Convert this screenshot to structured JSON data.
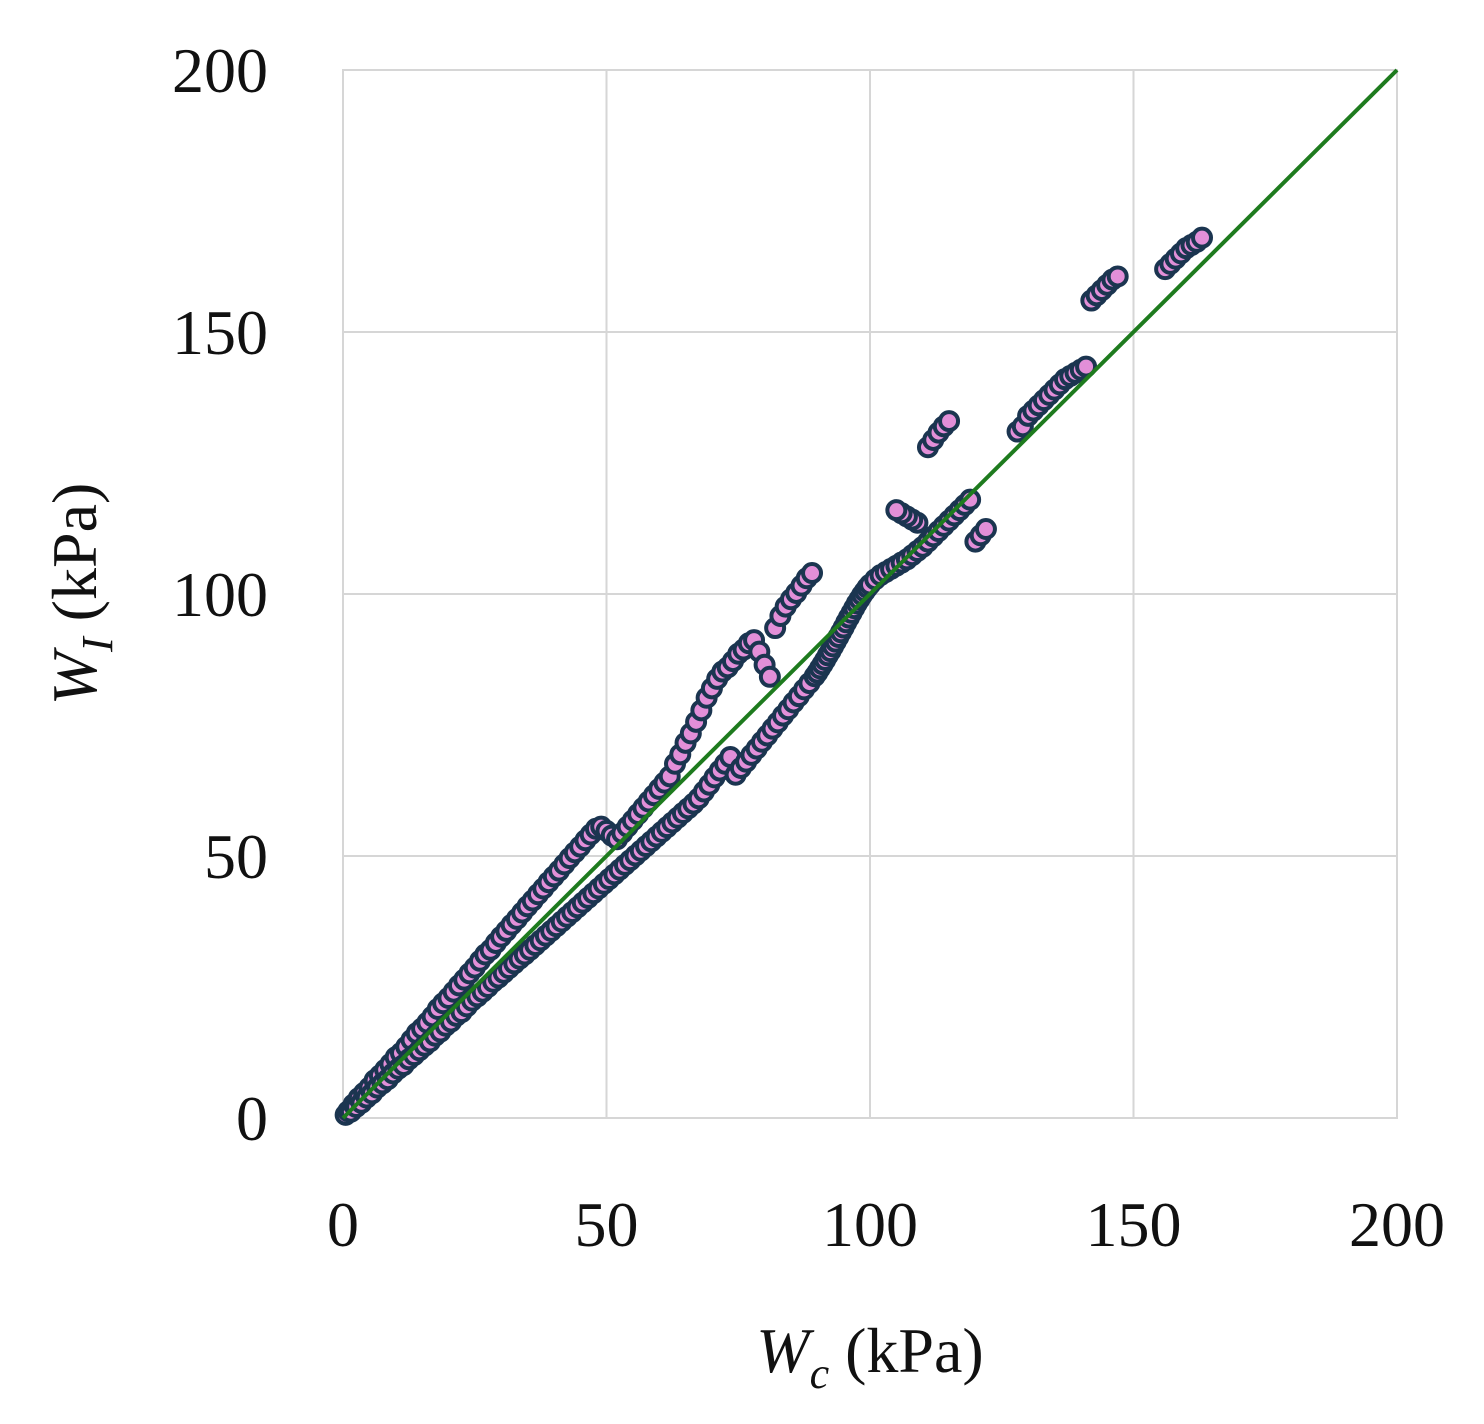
{
  "chart_data": {
    "type": "scatter",
    "title": "",
    "xlabel": {
      "var": "W",
      "sub": "c",
      "unit": " (kPa)"
    },
    "ylabel": {
      "var": "W",
      "sub": "I",
      "unit": " (kPa)"
    },
    "xlim": [
      0,
      200
    ],
    "ylim": [
      0,
      200
    ],
    "xticks": [
      "0",
      "50",
      "100",
      "150",
      "200"
    ],
    "yticks": [
      "0",
      "50",
      "100",
      "150",
      "200"
    ],
    "grid": true,
    "legend": "none",
    "reference_line": {
      "from": [
        0,
        0
      ],
      "to": [
        200,
        200
      ],
      "color": "#1e7b1e"
    },
    "marker": {
      "fill": "#e28fd8",
      "edge": "#1b3550"
    },
    "series": [
      {
        "points": [
          [
            0.5,
            0.6
          ],
          [
            1,
            1.3
          ],
          [
            1.5,
            1.2
          ],
          [
            2,
            2.6
          ],
          [
            2.5,
            2.1
          ],
          [
            3,
            3.8
          ],
          [
            3.5,
            2.9
          ],
          [
            4,
            4.8
          ],
          [
            4.5,
            3.9
          ],
          [
            5,
            5.8
          ],
          [
            5.5,
            4.7
          ],
          [
            6,
            7.2
          ],
          [
            6.5,
            5.8
          ],
          [
            7,
            8.1
          ],
          [
            7.5,
            6.6
          ],
          [
            8,
            9.2
          ],
          [
            8.5,
            7.4
          ],
          [
            9,
            10.3
          ],
          [
            9.5,
            8.5
          ],
          [
            10,
            11.6
          ],
          [
            10.5,
            9.4
          ],
          [
            11,
            12.4
          ],
          [
            11.5,
            10.1
          ],
          [
            12,
            13.6
          ],
          [
            12.5,
            11.2
          ],
          [
            13,
            14.9
          ],
          [
            13.5,
            12.0
          ],
          [
            14,
            16.2
          ],
          [
            14.5,
            12.9
          ],
          [
            15,
            17.1
          ],
          [
            15.5,
            13.8
          ],
          [
            16,
            18.2
          ],
          [
            16.5,
            14.6
          ],
          [
            17,
            19.4
          ],
          [
            17.5,
            15.7
          ],
          [
            18,
            20.8
          ],
          [
            18.5,
            16.5
          ],
          [
            19,
            21.9
          ],
          [
            19.5,
            17.6
          ],
          [
            20,
            22.9
          ],
          [
            20.5,
            18.4
          ],
          [
            21,
            24.1
          ],
          [
            21.5,
            19.5
          ],
          [
            22,
            25.3
          ],
          [
            22.5,
            20.2
          ],
          [
            23,
            26.4
          ],
          [
            23.5,
            21.3
          ],
          [
            24,
            27.6
          ],
          [
            24.5,
            22.4
          ],
          [
            25,
            28.7
          ],
          [
            25.5,
            23.2
          ],
          [
            26,
            30.0
          ],
          [
            26.5,
            24.1
          ],
          [
            27,
            31.2
          ],
          [
            27.5,
            25.0
          ],
          [
            28,
            32.1
          ],
          [
            28.5,
            26.0
          ],
          [
            29,
            33.4
          ],
          [
            29.5,
            26.8
          ],
          [
            30,
            34.6
          ],
          [
            30.5,
            27.7
          ],
          [
            31,
            35.7
          ],
          [
            31.5,
            28.6
          ],
          [
            32,
            36.9
          ],
          [
            32.5,
            29.5
          ],
          [
            33,
            38.0
          ],
          [
            33.5,
            30.4
          ],
          [
            34,
            39.2
          ],
          [
            34.5,
            31.2
          ],
          [
            35,
            40.4
          ],
          [
            35.5,
            32.1
          ],
          [
            36,
            41.5
          ],
          [
            36.5,
            33.0
          ],
          [
            37,
            42.7
          ],
          [
            37.5,
            33.9
          ],
          [
            38,
            43.8
          ],
          [
            38.5,
            34.8
          ],
          [
            39,
            45.0
          ],
          [
            39.5,
            35.7
          ],
          [
            40,
            46.1
          ],
          [
            40.5,
            36.6
          ],
          [
            41,
            47.2
          ],
          [
            41.5,
            37.5
          ],
          [
            42,
            48.4
          ],
          [
            42.5,
            38.4
          ],
          [
            43,
            49.6
          ],
          [
            43.5,
            39.3
          ],
          [
            44,
            50.7
          ],
          [
            44.5,
            40.2
          ],
          [
            45,
            51.8
          ],
          [
            45.5,
            41.1
          ],
          [
            46,
            53.0
          ],
          [
            46.5,
            42.0
          ],
          [
            47,
            54.1
          ],
          [
            47.5,
            42.9
          ],
          [
            48,
            55.2
          ],
          [
            48.5,
            43.8
          ],
          [
            49,
            55.6
          ],
          [
            49.5,
            44.7
          ],
          [
            50,
            54.8
          ],
          [
            50.5,
            45.6
          ],
          [
            51,
            53.9
          ],
          [
            51.5,
            46.5
          ],
          [
            52,
            53.2
          ],
          [
            52.5,
            47.4
          ],
          [
            53,
            54.4
          ],
          [
            53.5,
            48.3
          ],
          [
            54,
            55.6
          ],
          [
            54.5,
            49.2
          ],
          [
            55,
            56.8
          ],
          [
            55.5,
            50.1
          ],
          [
            56,
            58.0
          ],
          [
            56.5,
            51.0
          ],
          [
            57,
            59.2
          ],
          [
            57.5,
            51.9
          ],
          [
            58,
            60.4
          ],
          [
            58.5,
            52.8
          ],
          [
            59,
            61.6
          ],
          [
            59.5,
            53.7
          ],
          [
            60,
            62.8
          ],
          [
            60.5,
            54.6
          ],
          [
            61,
            64.0
          ],
          [
            61.5,
            55.5
          ],
          [
            62,
            65.2
          ],
          [
            62.5,
            56.4
          ],
          [
            63,
            67.6
          ],
          [
            63.5,
            57.3
          ],
          [
            64,
            69.4
          ],
          [
            64.5,
            58.2
          ],
          [
            65,
            71.6
          ],
          [
            65.5,
            59.1
          ],
          [
            66,
            73.4
          ],
          [
            66.5,
            60.0
          ],
          [
            67,
            75.6
          ],
          [
            67.5,
            61.0
          ],
          [
            68,
            77.8
          ],
          [
            68.5,
            62.3
          ],
          [
            69,
            80.2
          ],
          [
            69.5,
            63.6
          ],
          [
            70,
            82.0
          ],
          [
            70.5,
            65.0
          ],
          [
            71,
            83.8
          ],
          [
            71.5,
            66.3
          ],
          [
            72,
            85.2
          ],
          [
            72.5,
            67.6
          ],
          [
            73,
            86.0
          ],
          [
            73.5,
            68.9
          ],
          [
            74,
            87.2
          ],
          [
            74.5,
            65.5
          ],
          [
            75,
            88.6
          ],
          [
            75.5,
            66.8
          ],
          [
            76,
            89.4
          ],
          [
            76.5,
            68.0
          ],
          [
            77,
            90.6
          ],
          [
            77.5,
            69.3
          ],
          [
            78,
            91.2
          ],
          [
            78.5,
            70.5
          ],
          [
            79,
            89.0
          ],
          [
            79.5,
            71.8
          ],
          [
            80,
            86.5
          ],
          [
            80.5,
            73.0
          ],
          [
            81,
            84.2
          ],
          [
            81.5,
            74.3
          ],
          [
            82,
            93.5
          ],
          [
            82.5,
            75.5
          ],
          [
            83,
            95.8
          ],
          [
            83.5,
            76.8
          ],
          [
            84,
            97.6
          ],
          [
            84.5,
            78.0
          ],
          [
            85,
            99.0
          ],
          [
            85.5,
            79.3
          ],
          [
            86,
            100.2
          ],
          [
            86.5,
            80.5
          ],
          [
            87,
            101.6
          ],
          [
            87.5,
            81.8
          ],
          [
            88,
            103.0
          ],
          [
            88.5,
            83.0
          ],
          [
            89,
            104.0
          ],
          [
            89.5,
            84.3
          ],
          [
            90,
            85.0
          ],
          [
            90.5,
            85.8
          ],
          [
            91,
            86.6
          ],
          [
            91.5,
            87.4
          ],
          [
            92,
            88.3
          ],
          [
            92.5,
            89.1
          ],
          [
            93,
            90.0
          ],
          [
            93.5,
            90.9
          ],
          [
            94,
            91.8
          ],
          [
            94.5,
            92.7
          ],
          [
            95,
            93.6
          ],
          [
            95.5,
            94.6
          ],
          [
            96,
            95.5
          ],
          [
            96.5,
            96.4
          ],
          [
            97,
            97.3
          ],
          [
            97.5,
            98.2
          ],
          [
            98,
            99.0
          ],
          [
            98.5,
            99.8
          ],
          [
            99,
            100.5
          ],
          [
            99.5,
            101.2
          ],
          [
            100,
            101.8
          ],
          [
            101,
            102.8
          ],
          [
            102,
            103.6
          ],
          [
            103,
            104.2
          ],
          [
            104,
            104.8
          ],
          [
            105,
            105.4
          ],
          [
            106,
            106.0
          ],
          [
            107,
            106.6
          ],
          [
            108,
            107.4
          ],
          [
            109,
            108.2
          ],
          [
            110,
            109.0
          ],
          [
            111,
            110.0
          ],
          [
            112,
            111.0
          ],
          [
            113,
            112.0
          ],
          [
            114,
            113.0
          ],
          [
            115,
            114.0
          ],
          [
            116,
            115.0
          ],
          [
            117,
            116.0
          ],
          [
            118,
            117.0
          ],
          [
            119,
            118.0
          ],
          [
            120,
            110.0
          ],
          [
            121,
            111.2
          ],
          [
            122,
            112.4
          ],
          [
            109,
            113.6
          ],
          [
            108,
            114.2
          ],
          [
            107,
            114.8
          ],
          [
            106,
            115.4
          ],
          [
            105,
            116.0
          ],
          [
            111,
            128.0
          ],
          [
            112,
            129.4
          ],
          [
            113,
            130.8
          ],
          [
            114,
            132.0
          ],
          [
            115,
            133.0
          ],
          [
            128,
            131.0
          ],
          [
            129,
            132.0
          ],
          [
            130,
            134.0
          ],
          [
            131,
            135.0
          ],
          [
            132,
            136.0
          ],
          [
            133,
            137.0
          ],
          [
            134,
            138.0
          ],
          [
            135,
            139.0
          ],
          [
            136,
            140.0
          ],
          [
            137,
            141.0
          ],
          [
            138,
            141.6
          ],
          [
            139,
            142.2
          ],
          [
            140,
            142.8
          ],
          [
            141,
            143.4
          ],
          [
            142,
            156.0
          ],
          [
            143,
            157.0
          ],
          [
            144,
            158.0
          ],
          [
            145,
            159.0
          ],
          [
            146,
            160.0
          ],
          [
            147,
            160.6
          ],
          [
            156,
            162.0
          ],
          [
            157,
            163.0
          ],
          [
            158,
            164.0
          ],
          [
            159,
            165.0
          ],
          [
            160,
            166.0
          ],
          [
            161,
            166.6
          ],
          [
            162,
            167.2
          ],
          [
            163,
            168.0
          ]
        ]
      }
    ]
  }
}
